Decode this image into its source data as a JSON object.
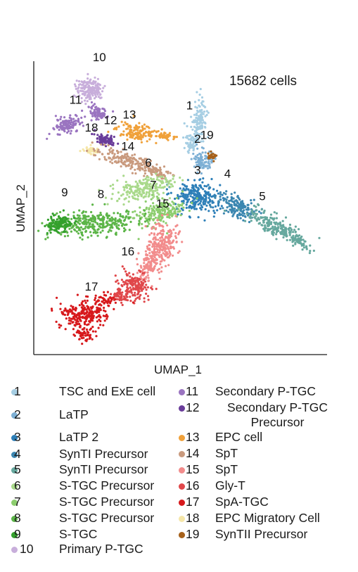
{
  "chart_data": {
    "type": "scatter",
    "title": "15682 cells",
    "xlabel": "UMAP_1",
    "ylabel": "UMAP_2",
    "grid": false,
    "legend_placement": "bottom",
    "clusters": [
      {
        "id": "1",
        "name": "TSC and ExE cell",
        "color": "#a6cee3",
        "label_xy": [
          6.2,
          8.9
        ]
      },
      {
        "id": "2",
        "name": "LaTP",
        "color": "#7eb0d5",
        "label_xy": [
          6.7,
          7.1
        ]
      },
      {
        "id": "3",
        "name": "LaTP 2",
        "color": "#2d7fb8",
        "label_xy": [
          6.7,
          5.4
        ]
      },
      {
        "id": "4",
        "name": "SynTI Precursor",
        "color": "#3b86b0",
        "label_xy": [
          8.6,
          5.2
        ]
      },
      {
        "id": "5",
        "name": "SynTI Precursor",
        "color": "#66a89e",
        "label_xy": [
          10.8,
          4.0
        ]
      },
      {
        "id": "6",
        "name": "S-TGC Precursor",
        "color": "#a9d98b",
        "label_xy": [
          3.6,
          5.8
        ]
      },
      {
        "id": "7",
        "name": "S-TGC Precursor",
        "color": "#8ccd6e",
        "label_xy": [
          3.9,
          4.6
        ]
      },
      {
        "id": "8",
        "name": "S-TGC Precursor",
        "color": "#5cb548",
        "label_xy": [
          0.6,
          4.1
        ]
      },
      {
        "id": "9",
        "name": "S-TGC",
        "color": "#33a02c",
        "label_xy": [
          -1.7,
          4.2
        ]
      },
      {
        "id": "10",
        "name": "Primary P-TGC",
        "color": "#c8aedb",
        "label_xy": [
          0.5,
          11.5
        ]
      },
      {
        "id": "11",
        "name": "Secondary P-TGC",
        "color": "#9a74c0",
        "label_xy": [
          -1.0,
          9.2
        ]
      },
      {
        "id": "12",
        "name": "Secondary P-TGC Precursor",
        "color": "#6a3d9a",
        "label_xy": [
          1.2,
          8.1
        ]
      },
      {
        "id": "13",
        "name": "EPC cell",
        "color": "#f0a13a",
        "label_xy": [
          2.4,
          8.4
        ]
      },
      {
        "id": "14",
        "name": "SpT",
        "color": "#c99a7e",
        "label_xy": [
          2.3,
          6.7
        ]
      },
      {
        "id": "15",
        "name": "SpT",
        "color": "#f28c8c",
        "label_xy": [
          4.5,
          3.6
        ]
      },
      {
        "id": "16",
        "name": "Gly-T",
        "color": "#e0474a",
        "label_xy": [
          2.3,
          1.0
        ]
      },
      {
        "id": "17",
        "name": "SpA-TGC",
        "color": "#d7191c",
        "label_xy": [
          0.0,
          -0.9
        ]
      },
      {
        "id": "18",
        "name": "EPC Migratory Cell",
        "color": "#f5e6a8",
        "label_xy": [
          0.0,
          7.7
        ]
      },
      {
        "id": "19",
        "name": "SynTII Precursor",
        "color": "#a6611a",
        "label_xy": [
          7.3,
          7.3
        ]
      }
    ]
  }
}
